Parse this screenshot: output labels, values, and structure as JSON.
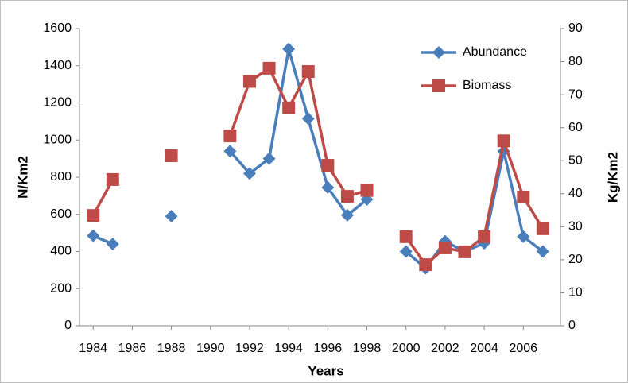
{
  "chart_data": {
    "type": "line",
    "x": [
      1984,
      1985,
      1986,
      1987,
      1988,
      1989,
      1990,
      1991,
      1992,
      1993,
      1994,
      1995,
      1996,
      1997,
      1998,
      1999,
      2000,
      2001,
      2002,
      2003,
      2004,
      2005,
      2006,
      2007
    ],
    "series": [
      {
        "name": "Abundance",
        "color": "#4a7ebb",
        "marker": "diamond",
        "values": [
          485,
          440,
          null,
          null,
          590,
          null,
          null,
          940,
          820,
          900,
          1490,
          1115,
          745,
          595,
          680,
          null,
          400,
          310,
          455,
          400,
          445,
          940,
          480,
          400
        ]
      },
      {
        "name": "Biomass",
        "color": "#be4b48",
        "marker": "square",
        "axis": "y2",
        "values": [
          33.4,
          44.3,
          null,
          null,
          51.5,
          null,
          null,
          57.5,
          74,
          78,
          66,
          77,
          48.6,
          39.2,
          41,
          null,
          27,
          18.5,
          23.6,
          22.4,
          27,
          56,
          39,
          29.4
        ]
      }
    ],
    "xlabel": "Years",
    "ylabel": "N/Km2",
    "y2label": "Kg/Km2",
    "xlim": [
      1983.3,
      2007.9
    ],
    "xticks": [
      1984,
      1986,
      1988,
      1990,
      1992,
      1994,
      1996,
      1998,
      2000,
      2002,
      2004,
      2006
    ],
    "ylim": [
      0,
      1600
    ],
    "yticks": [
      0,
      200,
      400,
      600,
      800,
      1000,
      1200,
      1400,
      1600
    ],
    "y2lim": [
      0,
      90
    ],
    "y2ticks": [
      0,
      10,
      20,
      30,
      40,
      50,
      60,
      70,
      80,
      90
    ],
    "grid": false,
    "legend": "top-right"
  }
}
